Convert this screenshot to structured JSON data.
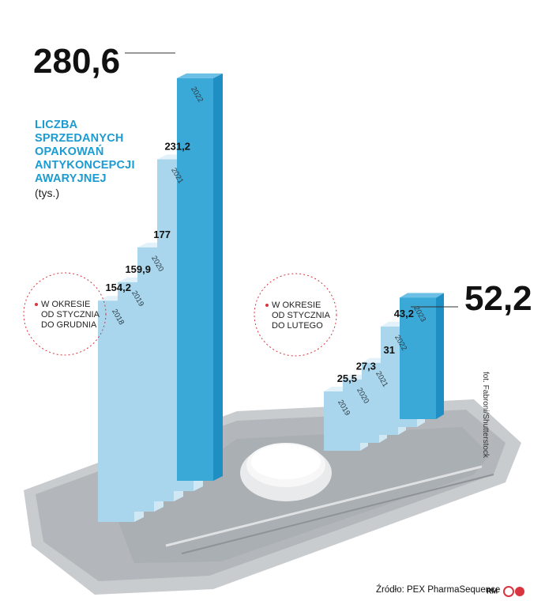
{
  "title": "LICZBA SPRZEDANYCH OPAKOWAŃ ANTYKONCEPCJI AWARYJNEJ",
  "title_lines": [
    "LICZBA",
    "SPRZEDANYCH",
    "OPAKOWAŃ",
    "ANTYKONCEPCJI",
    "AWARYJNEJ"
  ],
  "unit": "(tys.)",
  "colors": {
    "accent": "#1b9bd1",
    "bar_front": "#a9d6ec",
    "bar_side": "#d4ecf7",
    "bar_highlight": "#3aa9d8",
    "note_circle": "#d9343f"
  },
  "source": "Źródło: PEX PharmaSequence",
  "credit": "fot. Fabroni/Shutterstock",
  "logo_text": "RM",
  "chart_data": [
    {
      "type": "bar",
      "note": "W OKRESIE OD STYCZNIA DO GRUDNIA",
      "note_lines": [
        "W OKRESIE",
        "OD STYCZNIA",
        "DO GRUDNIA"
      ],
      "categories": [
        "2018",
        "2019",
        "2020",
        "2021",
        "2022"
      ],
      "values": [
        154.2,
        159.9,
        177,
        231.2,
        280.6
      ],
      "value_labels": [
        "154,2",
        "159,9",
        "177",
        "231,2",
        "280,6"
      ]
    },
    {
      "type": "bar",
      "note": "W OKRESIE OD STYCZNIA DO LUTEGO",
      "note_lines": [
        "W OKRESIE",
        "OD STYCZNIA",
        "DO LUTEGO"
      ],
      "categories": [
        "2019",
        "2020",
        "2021",
        "2022",
        "2023"
      ],
      "values": [
        25.5,
        27.3,
        31,
        43.2,
        52.2
      ],
      "value_labels": [
        "25,5",
        "27,3",
        "31",
        "43,2",
        "52,2"
      ]
    }
  ]
}
